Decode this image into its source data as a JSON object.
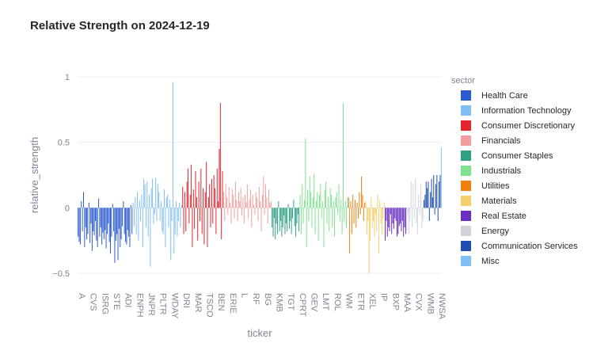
{
  "chart_data": {
    "type": "bar",
    "title": "Relative Strength on 2024-12-19",
    "xlabel": "ticker",
    "ylabel": "relative_strength",
    "ylim": [
      -0.5,
      1
    ],
    "yticks": [
      1,
      0.5,
      0,
      -0.5
    ],
    "y_tick_labels": [
      "1",
      "0.5",
      "0",
      "−0.5"
    ],
    "grid": true,
    "legend_title": "sector",
    "legend_position": "right",
    "x_tick_labels": [
      "A",
      "CVS",
      "ISRG",
      "STE",
      "ADI",
      "ENPH",
      "JNPR",
      "PLTR",
      "WDAY",
      "DRI",
      "MAR",
      "TSCO",
      "BEN",
      "ERIE",
      "L",
      "RF",
      "BG",
      "KMB",
      "TGT",
      "CPRT",
      "GEV",
      "LMT",
      "ROL",
      "WM",
      "ETR",
      "XEL",
      "IP",
      "BXP",
      "MAA",
      "CVX",
      "WMB",
      "NWSA"
    ],
    "series": [
      {
        "name": "Health Care",
        "color": "#2a5bcf",
        "values": [
          -0.22,
          -0.26,
          -0.28,
          0.05,
          -0.18,
          0.12,
          -0.3,
          -0.15,
          -0.24,
          -0.2,
          0.04,
          -0.27,
          -0.12,
          -0.33,
          -0.18,
          -0.21,
          -0.1,
          -0.25,
          -0.3,
          0.07,
          -0.22,
          -0.15,
          -0.28,
          -0.19,
          -0.24,
          -0.17,
          -0.31,
          -0.2,
          -0.12,
          -0.26,
          -0.35,
          -0.22,
          0.03,
          -0.18,
          -0.42,
          -0.25,
          -0.2,
          -0.4,
          -0.16,
          -0.3,
          -0.24,
          -0.14,
          0.05,
          -0.2,
          -0.26,
          -0.28,
          -0.17,
          -0.22,
          -0.3,
          0.02,
          -0.2
        ]
      },
      {
        "name": "Information Technology",
        "color": "#7fbff5",
        "values": [
          0.04,
          -0.14,
          0.08,
          -0.2,
          0.12,
          -0.25,
          0.06,
          -0.1,
          0.1,
          -0.3,
          0.22,
          0.18,
          -0.15,
          0.2,
          -0.22,
          0.1,
          -0.45,
          0.15,
          0.22,
          -0.12,
          -0.05,
          0.23,
          -0.1,
          0.18,
          0.12,
          -0.1,
          0.05,
          -0.18,
          -0.2,
          0.14,
          -0.3,
          0.08,
          0.1,
          -0.15,
          0.06,
          -0.4,
          -0.1,
          0.96,
          -0.35,
          -0.2,
          0.05,
          -0.22,
          -0.1,
          0.04,
          -0.15,
          0.02
        ]
      },
      {
        "name": "Consumer Discretionary",
        "color": "#e6242e",
        "values": [
          0.16,
          -0.2,
          0.12,
          -0.18,
          0.2,
          0.3,
          -0.12,
          0.1,
          0.33,
          -0.3,
          0.14,
          -0.16,
          0.28,
          0.08,
          -0.25,
          0.2,
          -0.1,
          0.3,
          -0.2,
          0.15,
          -0.28,
          0.12,
          0.35,
          -0.3,
          0.08,
          0.18,
          -0.15,
          0.22,
          -0.12,
          0.25,
          0.15,
          -0.2,
          0.3,
          0.05,
          0.45,
          0.8,
          -0.24,
          0.28
        ]
      },
      {
        "name": "Financials",
        "color": "#f29e9e",
        "values": [
          0.12,
          -0.1,
          0.18,
          0.08,
          -0.05,
          0.16,
          0.04,
          -0.12,
          0.14,
          0.1,
          -0.08,
          0.2,
          0.06,
          -0.1,
          0.12,
          0.05,
          0.15,
          -0.06,
          0.08,
          -0.12,
          0.1,
          0.04,
          0.18,
          -0.08,
          0.06,
          0.14,
          -0.15,
          0.1,
          0.02,
          -0.05,
          0.12,
          0.08,
          -0.1,
          0.16,
          0.05,
          -0.18,
          0.1,
          0.24,
          -0.05,
          0.18,
          0.08,
          -0.12,
          0.14,
          0.04,
          0.05
        ]
      },
      {
        "name": "Consumer Staples",
        "color": "#2fa085",
        "values": [
          -0.15,
          -0.22,
          -0.08,
          -0.24,
          -0.12,
          -0.2,
          0.05,
          -0.18,
          -0.1,
          -0.22,
          -0.15,
          -0.06,
          -0.2,
          -0.12,
          -0.18,
          0.03,
          -0.16,
          -0.1,
          -0.2,
          -0.08,
          0.06,
          -0.14,
          -0.22,
          -0.12,
          -0.05,
          -0.18
        ]
      },
      {
        "name": "Industrials",
        "color": "#7de28e",
        "values": [
          0.1,
          -0.2,
          0.18,
          -0.12,
          0.06,
          0.53,
          -0.3,
          0.14,
          -0.1,
          0.24,
          0.12,
          -0.15,
          0.08,
          0.26,
          -0.2,
          0.05,
          0.12,
          -0.25,
          0.1,
          0.18,
          -0.08,
          0.05,
          -0.3,
          0.14,
          0.2,
          -0.12,
          0.08,
          -0.18,
          0.15,
          0.1,
          -0.15,
          0.05,
          -0.22,
          0.08,
          0.12,
          -0.05,
          0.18,
          -0.1,
          0.06,
          -0.2,
          0.8,
          -0.1,
          0.05,
          -0.15,
          0.08
        ]
      },
      {
        "name": "Utilities",
        "color": "#f07f0c",
        "values": [
          0.08,
          -0.35,
          0.05,
          -0.2,
          0.1,
          -0.12,
          0.06,
          -0.15,
          0.04,
          -0.08,
          0.12,
          -0.05,
          0.24,
          0.1,
          -0.1,
          0.04
        ]
      },
      {
        "name": "Materials",
        "color": "#f5ce6e",
        "values": [
          0.05,
          -0.2,
          -0.1,
          -0.5,
          -0.25,
          0.08,
          -0.15,
          -0.1,
          -0.22,
          -0.05,
          -0.18,
          0.1,
          -0.35,
          0.06,
          -0.12,
          -0.2,
          -0.08,
          0.04
        ]
      },
      {
        "name": "Real Estate",
        "color": "#6a2fc0",
        "values": [
          -0.25,
          -0.1,
          -0.22,
          -0.15,
          -0.18,
          -0.05,
          -0.2,
          -0.12,
          -0.16,
          -0.08,
          -0.1,
          -0.22,
          -0.2,
          -0.14,
          -0.12,
          -0.18,
          -0.1,
          -0.22,
          -0.15,
          -0.2
        ]
      },
      {
        "name": "Energy",
        "color": "#d1d3de",
        "values": [
          -0.18,
          -0.05,
          -0.2,
          -0.1,
          0.2,
          -0.15,
          0.18,
          -0.08,
          0.22,
          -0.12,
          -0.2,
          0.1,
          -0.05,
          0.18,
          -0.15,
          -0.1
        ]
      },
      {
        "name": "Communication Services",
        "color": "#1f4eb0",
        "values": [
          0.06,
          0.1,
          0.2,
          0.15,
          0.2,
          -0.1,
          0.12,
          0.22,
          0.08,
          0.25,
          -0.05,
          0.18,
          0.25,
          -0.1,
          0.2,
          0.25
        ]
      },
      {
        "name": "Misc",
        "color": "#7fbff5",
        "values": [
          0.46
        ]
      }
    ]
  }
}
